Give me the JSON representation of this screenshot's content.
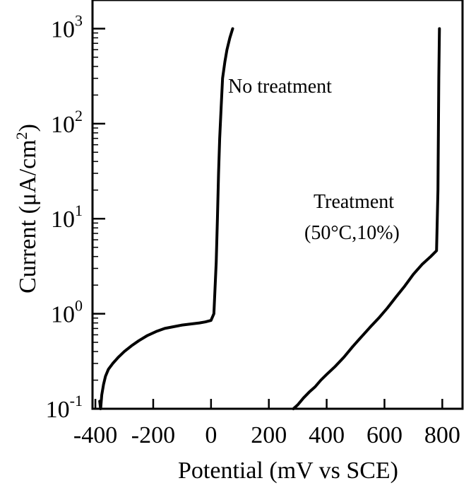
{
  "chart_data": {
    "type": "line",
    "title": "",
    "xlabel": "Potential (mV vs SCE)",
    "ylabel_main": "Current (μA/cm",
    "ylabel_sup": "2",
    "ylabel_close": ")",
    "ylabel": "Current (μA/cm2)",
    "x_ticks": [
      -400,
      -200,
      0,
      200,
      400,
      600,
      800
    ],
    "x_tick_labels": [
      "-400",
      "-200",
      "0",
      "200",
      "400",
      "600",
      "800"
    ],
    "y_scale": "log",
    "y_ticks": [
      0.1,
      1,
      10,
      100,
      1000
    ],
    "y_tick_labels": [
      {
        "base": "10",
        "exp": "-1"
      },
      {
        "base": "10",
        "exp": "0"
      },
      {
        "base": "10",
        "exp": "1"
      },
      {
        "base": "10",
        "exp": "2"
      },
      {
        "base": "10",
        "exp": "3"
      }
    ],
    "xlim": [
      -410,
      870
    ],
    "ylim": [
      0.1,
      2000
    ],
    "grid": false,
    "series": [
      {
        "name": "No treatment",
        "color": "#000000",
        "x": [
          -385,
          -382,
          -378,
          -372,
          -365,
          -355,
          -340,
          -320,
          -300,
          -275,
          -250,
          -220,
          -190,
          -160,
          -130,
          -100,
          -70,
          -40,
          -20,
          0,
          10,
          18,
          22,
          26,
          30,
          35,
          40,
          48,
          55,
          65,
          75
        ],
        "y": [
          0.12,
          0.1,
          0.14,
          0.18,
          0.22,
          0.26,
          0.3,
          0.35,
          0.4,
          0.46,
          0.52,
          0.59,
          0.65,
          0.7,
          0.73,
          0.76,
          0.78,
          0.8,
          0.82,
          0.85,
          1.0,
          3.5,
          10,
          30,
          70,
          150,
          300,
          450,
          600,
          800,
          1000
        ]
      },
      {
        "name": "Treatment (50°C,10%)",
        "color": "#000000",
        "x": [
          285,
          300,
          320,
          340,
          360,
          380,
          400,
          430,
          460,
          490,
          520,
          550,
          580,
          610,
          640,
          670,
          700,
          730,
          760,
          780,
          785,
          788,
          790
        ],
        "y": [
          0.1,
          0.11,
          0.13,
          0.15,
          0.17,
          0.2,
          0.23,
          0.28,
          0.35,
          0.45,
          0.57,
          0.72,
          0.9,
          1.15,
          1.5,
          1.95,
          2.6,
          3.3,
          4.0,
          4.6,
          20,
          300,
          1000
        ]
      }
    ],
    "annotations": [
      {
        "text": "No treatment"
      },
      {
        "text": "Treatment"
      },
      {
        "text": "(50°C,10%)"
      }
    ]
  }
}
